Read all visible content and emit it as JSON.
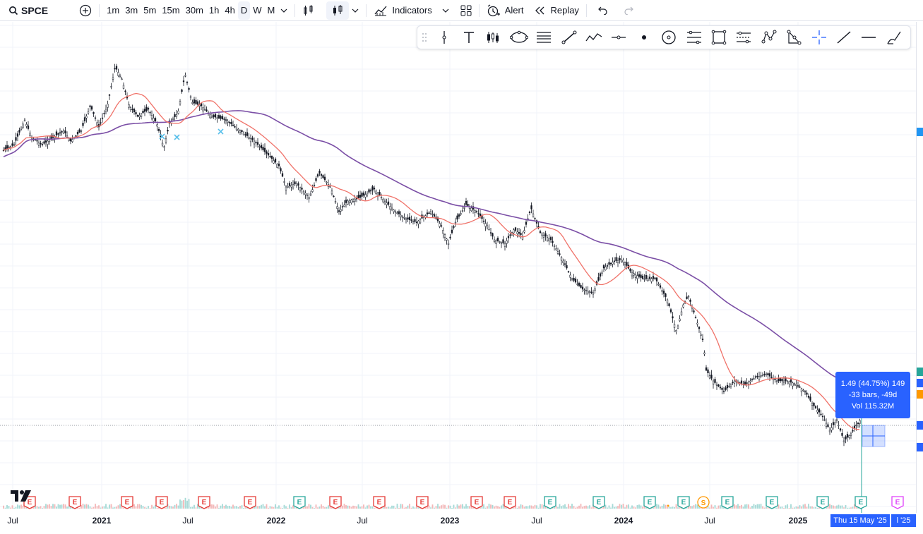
{
  "toolbar": {
    "symbol": "SPCE",
    "intervals": [
      "1m",
      "3m",
      "5m",
      "15m",
      "30m",
      "1h",
      "4h",
      "D",
      "W",
      "M"
    ],
    "selected_interval": "D",
    "indicators_label": "Indicators",
    "alert_label": "Alert",
    "replay_label": "Replay"
  },
  "drawing_tools": [
    "handle",
    "vertical-line",
    "text",
    "long-short-position",
    "ellipse",
    "fib-channel",
    "trend-line",
    "path",
    "horizontal-ray",
    "dot",
    "circle",
    "fib-retracement",
    "rectangle",
    "parallel-channel",
    "pattern",
    "triangle",
    "cross-line",
    "line",
    "horizontal-line",
    "brush"
  ],
  "measure_tooltip": {
    "line1": "1.49 (44.75%) 149",
    "line2": "-33 bars, -49d",
    "line3": "Vol 115.32M"
  },
  "x_axis": {
    "labels": [
      "Jul",
      "2021",
      "Jul",
      "2022",
      "Jul",
      "2023",
      "Jul",
      "2024",
      "Jul",
      "2025"
    ],
    "crosshair_date": "Thu 15 May '25",
    "partial_label": "l '25"
  },
  "events": {
    "earnings_letter": "E",
    "split_letter": "S"
  },
  "colors": {
    "accent": "#2962ff",
    "ma_fast": "#f0736a",
    "ma_slow": "#7b4fa6",
    "earnings_red": "#e53935",
    "earnings_green": "#26a69a",
    "split_orange": "#ff9800"
  },
  "chart_data": {
    "type": "line",
    "series": [
      {
        "values": [
          95,
          95,
          100,
          118,
          100,
          102,
          112,
          125,
          150,
          200,
          140,
          120,
          140,
          190,
          170,
          165,
          155,
          150,
          140,
          120,
          110,
          115,
          100,
          105,
          90,
          100,
          85,
          90,
          80,
          70,
          65,
          60,
          62,
          55,
          50,
          45,
          40,
          35,
          30,
          20,
          10,
          5,
          0
        ]
      },
      {
        "values": [
          95,
          102,
          110,
          130,
          140,
          150,
          155,
          152,
          148,
          145,
          140,
          135,
          125,
          115,
          108,
          102,
          98,
          94,
          90,
          85,
          80,
          75,
          65,
          55,
          40,
          30,
          25,
          20,
          10
        ]
      },
      {
        "values": [
          100,
          110,
          130,
          145,
          150,
          150,
          148,
          140,
          130,
          120,
          110,
          100,
          92,
          85,
          80,
          75,
          70,
          65,
          60,
          50,
          40,
          30,
          20,
          10
        ]
      }
    ]
  }
}
